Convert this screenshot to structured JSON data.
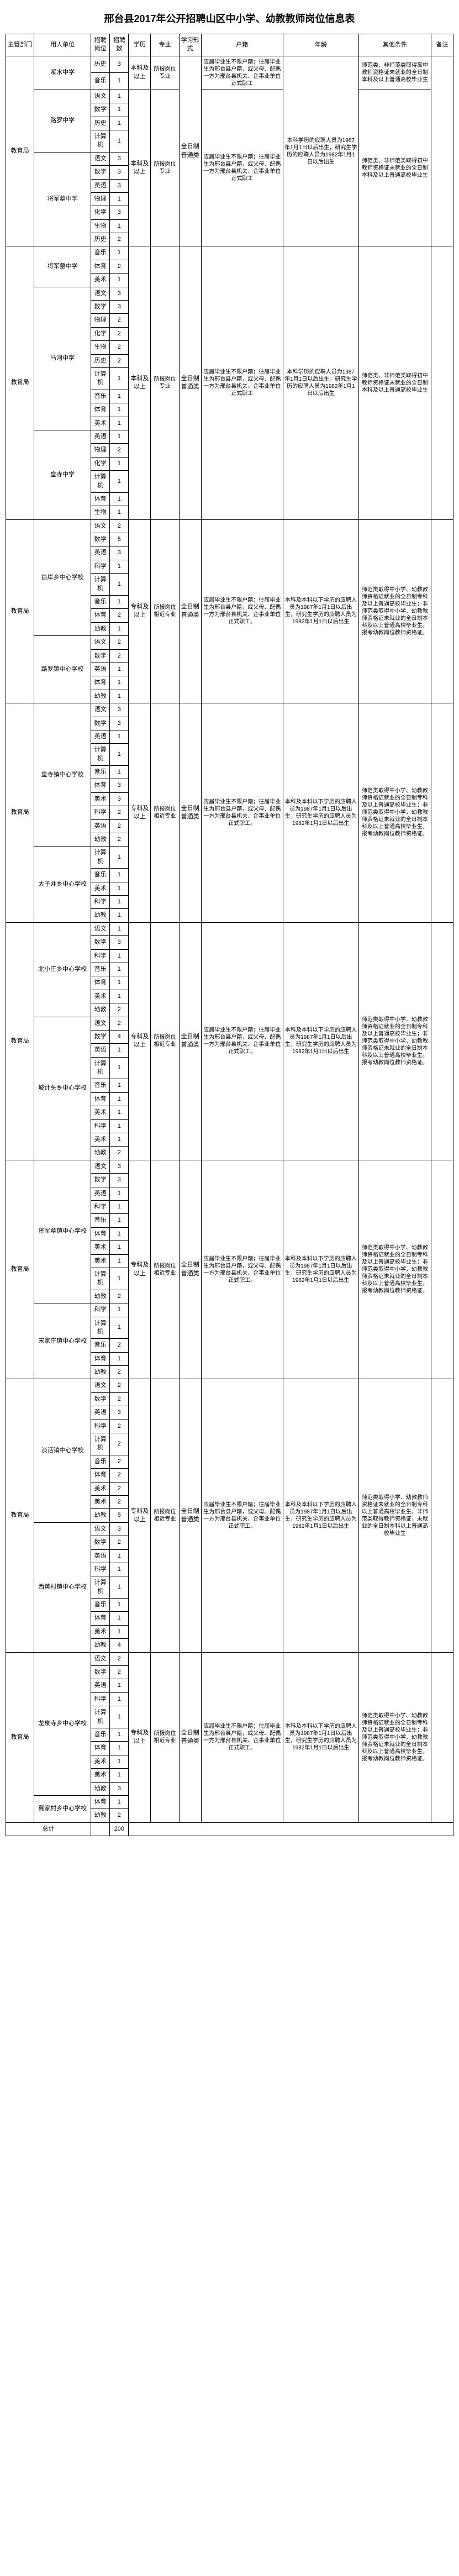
{
  "title": "邢台县2017年公开招聘山区中小学、幼教教师岗位信息表",
  "headers": {
    "dept": "主管部门",
    "unit": "用人单位",
    "cat": "招聘岗位",
    "num": "招聘数",
    "edu": "学历",
    "major": "专业",
    "mode": "学习形式",
    "hukou": "户籍",
    "age": "年龄",
    "other": "其他条件",
    "remark": "备注"
  },
  "dept": "教育局",
  "edu_b": "本科及以上",
  "edu_z": "专科及以上",
  "major_a": "所报岗位专业",
  "major_b": "所报岗位相近专业",
  "mode": "全日制普通类",
  "hukou_a": "应届毕业生不限户籍；往届毕业生为邢台县户籍，或父母、配偶一方为邢台县机关、企事业单位正式职工",
  "hukou_b": "应届毕业生不限户籍；往届毕业生为邢台县户籍，或父母、配偶一方为邢台县机关、企事业单位正式职工。",
  "age_a": "本科学历的应聘人员为1987年1月1日以后出生，研究生学历的应聘人员为1982年1月1日以后出生",
  "age_b": "本科及本科以下学历的应聘人员为1987年1月1日以后出生，研究生学历的应聘人员为1982年1月1日以后出生",
  "other_a": "师范类、非师范类取得高中教师资格证未就业的全日制本科及以上普通高校毕业生",
  "other_b": "师范类、非师范类取得初中教师资格证未就业的全日制本科及以上普通高校毕业生",
  "other_c": "师范类取得中小学、幼教教师资格证就业的全日制专科及以上普通高校毕业生；非师范类取得中小学、幼教教师资格证未就业的全日制本科及以上普通高校毕业生。报考幼教岗位教师资格证。",
  "other_d": "师范类取得小学、幼教教师资格证未就业的全日制专科以上普通高校毕业生，非师范类取得教师资格证，未就业的全日制本科以上普通高校毕业生",
  "units": {
    "u1": "浆水中学",
    "u2": "路罗中学",
    "u3": "将军墓中学",
    "u4": "马河中学",
    "u5": "皇寺中学",
    "u6": "白岸乡中心学校",
    "u7": "路罗镇中心学校",
    "u8": "皇寺镇中心学校",
    "u9": "太子井乡中心学校",
    "u10": "北小庄乡中心学校",
    "u11": "城计头乡中心学校",
    "u12": "将军墓镇中心学校",
    "u13": "宋家庄镇中心学校",
    "u14": "谈话镇中心学校",
    "u15": "西黄村镇中心学校",
    "u16": "龙泉寺乡中心学校",
    "u17": "冀家村乡中心学校"
  },
  "subj": {
    "yw": "语文",
    "sx": "数学",
    "yy": "英语",
    "wl": "物理",
    "hx": "化学",
    "sw": "生物",
    "ls": "历史",
    "dl": "地理",
    "zz": "政治",
    "yl": "音乐",
    "ms": "美术",
    "ty": "体育",
    "jsj": "计算机",
    "kx": "科学",
    "yj": "幼教",
    "xx": "信息"
  },
  "total_label": "总计",
  "total": "200"
}
